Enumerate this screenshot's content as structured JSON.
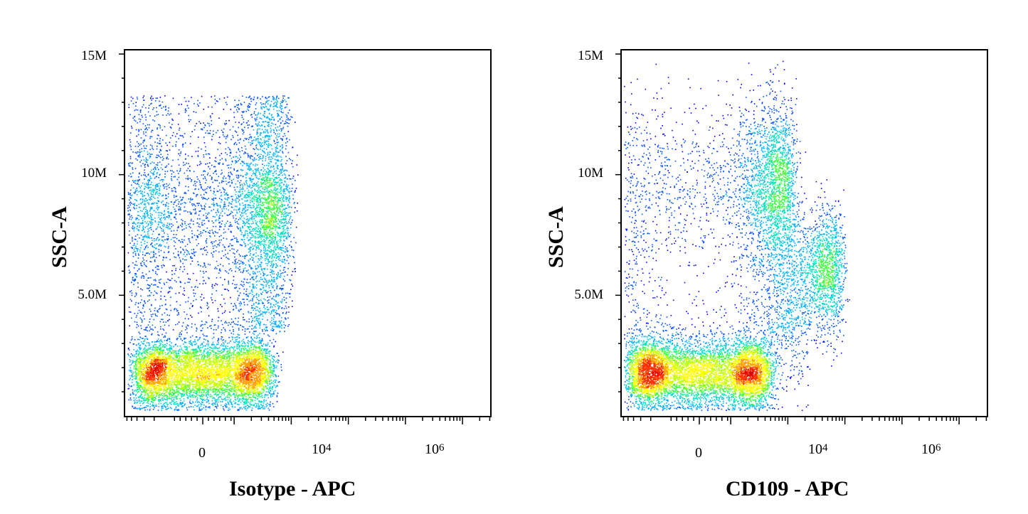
{
  "chart_data": [
    {
      "type": "scatter",
      "subtype": "density",
      "xlabel": "Isotype - APC",
      "ylabel": "SSC-A",
      "ylim": [
        0,
        15000000
      ],
      "x_scale": "biexponential",
      "yticks": [
        {
          "value": 5000000,
          "label": "5.0M"
        },
        {
          "value": 10000000,
          "label": "10M"
        },
        {
          "value": 15000000,
          "label": "15M"
        }
      ],
      "xticks": [
        {
          "value": 0,
          "base": "0",
          "exp": ""
        },
        {
          "value": 10000,
          "base": "10",
          "exp": "4"
        },
        {
          "value": 1000000,
          "base": "10",
          "exp": "6"
        }
      ],
      "populations": [
        {
          "x_center": 0,
          "y_center": 1800000,
          "x_spread": 200,
          "y_spread": 700000,
          "count": 6500,
          "kind": "blob"
        },
        {
          "x_center": 150,
          "y_center": 8500000,
          "x_spread": 350,
          "y_spread": 2600000,
          "count": 5200,
          "kind": "column",
          "y_min": 3500000,
          "y_max": 13300000
        }
      ]
    },
    {
      "type": "scatter",
      "subtype": "density",
      "xlabel": "CD109 - APC",
      "ylabel": "SSC-A",
      "ylim": [
        0,
        15000000
      ],
      "x_scale": "biexponential",
      "yticks": [
        {
          "value": 5000000,
          "label": "5.0M"
        },
        {
          "value": 10000000,
          "label": "10M"
        },
        {
          "value": 15000000,
          "label": "15M"
        }
      ],
      "xticks": [
        {
          "value": 0,
          "base": "0",
          "exp": ""
        },
        {
          "value": 10000,
          "base": "10",
          "exp": "4"
        },
        {
          "value": 1000000,
          "base": "10",
          "exp": "6"
        }
      ],
      "populations": [
        {
          "x_center": 0,
          "y_center": 1800000,
          "x_spread": 220,
          "y_spread": 700000,
          "count": 6500,
          "kind": "blob"
        },
        {
          "x_center": 400,
          "y_center": 9500000,
          "x_spread": 450,
          "y_spread": 1800000,
          "count": 3000,
          "kind": "cloud"
        },
        {
          "x_center": 4000,
          "y_center": 6000000,
          "x_spread": 2500,
          "y_spread": 1300000,
          "count": 1600,
          "kind": "cloud"
        },
        {
          "x_center": 500,
          "y_center": 4000000,
          "x_spread": 800,
          "y_spread": 1500000,
          "count": 900,
          "kind": "cloud"
        }
      ]
    }
  ],
  "colors": {
    "density": [
      "#0000ff",
      "#0050ff",
      "#00b0ff",
      "#00e0c0",
      "#40ff40",
      "#c0ff00",
      "#ffff00",
      "#ffa000",
      "#ff3000",
      "#e00000"
    ]
  }
}
